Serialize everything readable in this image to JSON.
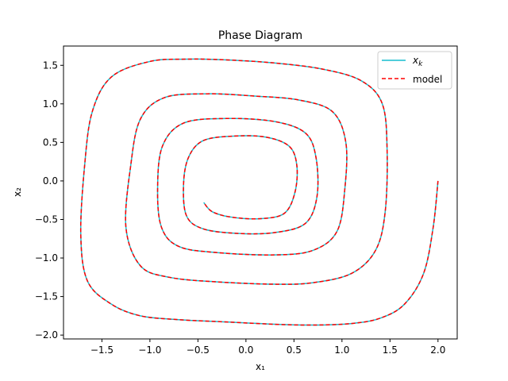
{
  "chart_data": {
    "type": "line",
    "title": "Phase Diagram",
    "xlabel": "x₁",
    "ylabel": "x₂",
    "xlim": [
      -1.9,
      2.2
    ],
    "ylim": [
      -2.05,
      1.75
    ],
    "xticks": [
      -1.5,
      -1.0,
      -0.5,
      0.0,
      0.5,
      1.0,
      1.5,
      2.0
    ],
    "xtick_labels": [
      "−1.5",
      "−1.0",
      "−0.5",
      "0.0",
      "0.5",
      "1.0",
      "1.5",
      "2.0"
    ],
    "yticks": [
      -2.0,
      -1.5,
      -1.0,
      -0.5,
      0.0,
      0.5,
      1.0,
      1.5
    ],
    "ytick_labels": [
      "−2.0",
      "−1.5",
      "−1.0",
      "−0.5",
      "0.0",
      "0.5",
      "1.0",
      "1.5"
    ],
    "grid": false,
    "legend_position": "top-right",
    "series": [
      {
        "name": "x_k",
        "legend_label": "xk",
        "color": "#17becf",
        "style": "solid",
        "points": [
          [
            2.0,
            0.0
          ],
          [
            1.95,
            -0.6
          ],
          [
            1.85,
            -1.2
          ],
          [
            1.65,
            -1.6
          ],
          [
            1.4,
            -1.78
          ],
          [
            1.1,
            -1.85
          ],
          [
            0.7,
            -1.87
          ],
          [
            0.3,
            -1.86
          ],
          [
            -0.2,
            -1.83
          ],
          [
            -0.7,
            -1.8
          ],
          [
            -1.1,
            -1.75
          ],
          [
            -1.4,
            -1.6
          ],
          [
            -1.65,
            -1.3
          ],
          [
            -1.72,
            -0.7
          ],
          [
            -1.68,
            0.2
          ],
          [
            -1.6,
            0.9
          ],
          [
            -1.4,
            1.35
          ],
          [
            -1.0,
            1.55
          ],
          [
            -0.6,
            1.58
          ],
          [
            -0.2,
            1.57
          ],
          [
            0.3,
            1.53
          ],
          [
            0.8,
            1.45
          ],
          [
            1.2,
            1.3
          ],
          [
            1.42,
            1.0
          ],
          [
            1.47,
            0.4
          ],
          [
            1.45,
            -0.4
          ],
          [
            1.35,
            -0.9
          ],
          [
            1.1,
            -1.2
          ],
          [
            0.7,
            -1.32
          ],
          [
            0.3,
            -1.34
          ],
          [
            -0.3,
            -1.31
          ],
          [
            -0.8,
            -1.25
          ],
          [
            -1.1,
            -1.1
          ],
          [
            -1.25,
            -0.6
          ],
          [
            -1.2,
            0.2
          ],
          [
            -1.1,
            0.8
          ],
          [
            -0.85,
            1.08
          ],
          [
            -0.4,
            1.13
          ],
          [
            0.1,
            1.1
          ],
          [
            0.55,
            1.05
          ],
          [
            0.9,
            0.9
          ],
          [
            1.04,
            0.5
          ],
          [
            1.03,
            -0.1
          ],
          [
            0.95,
            -0.65
          ],
          [
            0.7,
            -0.9
          ],
          [
            0.3,
            -0.96
          ],
          [
            -0.3,
            -0.93
          ],
          [
            -0.7,
            -0.85
          ],
          [
            -0.88,
            -0.6
          ],
          [
            -0.92,
            -0.1
          ],
          [
            -0.87,
            0.45
          ],
          [
            -0.65,
            0.75
          ],
          [
            -0.2,
            0.81
          ],
          [
            0.3,
            0.77
          ],
          [
            0.62,
            0.62
          ],
          [
            0.73,
            0.3
          ],
          [
            0.74,
            -0.2
          ],
          [
            0.62,
            -0.55
          ],
          [
            0.3,
            -0.67
          ],
          [
            -0.1,
            -0.68
          ],
          [
            -0.45,
            -0.62
          ],
          [
            -0.62,
            -0.45
          ],
          [
            -0.65,
            -0.05
          ],
          [
            -0.6,
            0.3
          ],
          [
            -0.45,
            0.52
          ],
          [
            -0.15,
            0.58
          ],
          [
            0.2,
            0.57
          ],
          [
            0.45,
            0.45
          ],
          [
            0.53,
            0.2
          ],
          [
            0.51,
            -0.15
          ],
          [
            0.4,
            -0.42
          ],
          [
            0.15,
            -0.49
          ],
          [
            -0.15,
            -0.47
          ],
          [
            -0.35,
            -0.4
          ],
          [
            -0.44,
            -0.28
          ]
        ]
      },
      {
        "name": "model",
        "legend_label": "model",
        "color": "#ff0000",
        "style": "dashed",
        "same_as": "x_k"
      }
    ]
  }
}
